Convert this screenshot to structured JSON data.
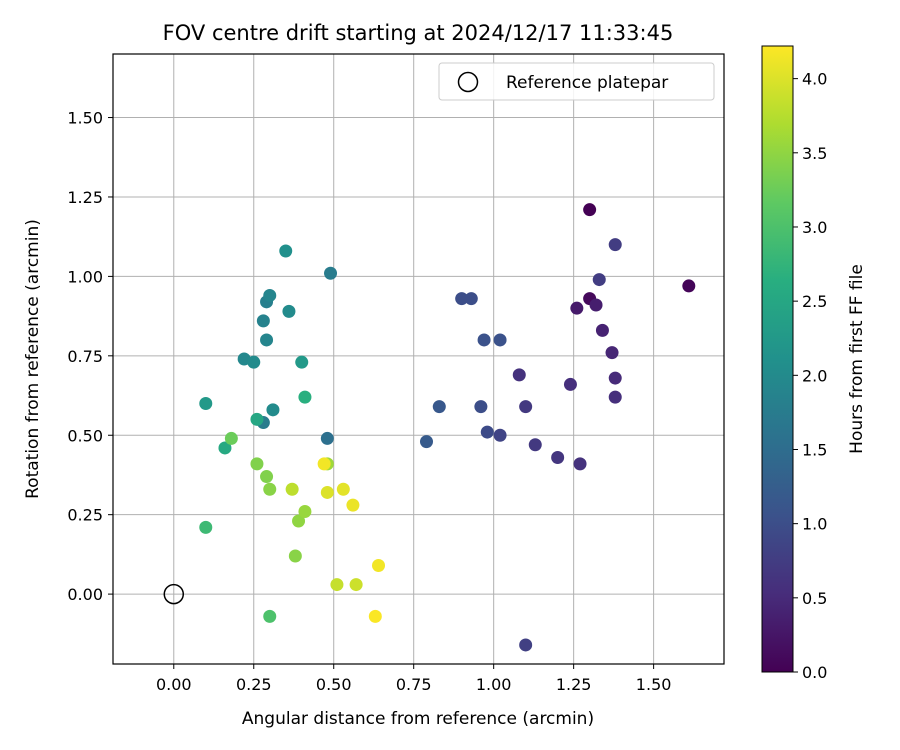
{
  "chart_data": {
    "type": "scatter",
    "title": "FOV centre drift starting at 2024/12/17 11:33:45",
    "xlabel": "Angular distance from reference (arcmin)",
    "ylabel": "Rotation from reference (arcmin)",
    "xlim": [
      -0.19,
      1.72
    ],
    "ylim": [
      -0.22,
      1.7
    ],
    "xticks": [
      0.0,
      0.25,
      0.5,
      0.75,
      1.0,
      1.25,
      1.5
    ],
    "xtick_labels": [
      "0.00",
      "0.25",
      "0.50",
      "0.75",
      "1.00",
      "1.25",
      "1.50"
    ],
    "yticks": [
      0.0,
      0.25,
      0.5,
      0.75,
      1.0,
      1.25,
      1.5
    ],
    "ytick_labels": [
      "0.00",
      "0.25",
      "0.50",
      "0.75",
      "1.00",
      "1.25",
      "1.50"
    ],
    "grid": true,
    "legend": {
      "position": "top-right",
      "entries": [
        "Reference platepar"
      ]
    },
    "reference_point": {
      "x": 0.0,
      "y": 0.0
    },
    "colorbar": {
      "label": "Hours from first FF file",
      "min": 0.0,
      "max": 4.22,
      "ticks": [
        0.0,
        0.5,
        1.0,
        1.5,
        2.0,
        2.5,
        3.0,
        3.5,
        4.0
      ],
      "tick_labels": [
        "0.0",
        "0.5",
        "1.0",
        "1.5",
        "2.0",
        "2.5",
        "3.0",
        "3.5",
        "4.0"
      ],
      "colormap": "viridis"
    },
    "series": [
      {
        "points": [
          {
            "x": 1.3,
            "y": 1.21,
            "c": 0.0
          },
          {
            "x": 1.61,
            "y": 0.97,
            "c": 0.05
          },
          {
            "x": 1.3,
            "y": 0.93,
            "c": 0.1
          },
          {
            "x": 1.26,
            "y": 0.9,
            "c": 0.3
          },
          {
            "x": 1.32,
            "y": 0.91,
            "c": 0.35
          },
          {
            "x": 1.34,
            "y": 0.83,
            "c": 0.4
          },
          {
            "x": 1.37,
            "y": 0.76,
            "c": 0.45
          },
          {
            "x": 1.38,
            "y": 0.68,
            "c": 0.5
          },
          {
            "x": 1.38,
            "y": 0.62,
            "c": 0.55
          },
          {
            "x": 1.24,
            "y": 0.66,
            "c": 0.55
          },
          {
            "x": 1.27,
            "y": 0.41,
            "c": 0.6
          },
          {
            "x": 1.2,
            "y": 0.43,
            "c": 0.65
          },
          {
            "x": 1.13,
            "y": 0.47,
            "c": 0.7
          },
          {
            "x": 1.08,
            "y": 0.69,
            "c": 0.6
          },
          {
            "x": 1.1,
            "y": 0.59,
            "c": 0.7
          },
          {
            "x": 1.33,
            "y": 0.99,
            "c": 0.75
          },
          {
            "x": 1.38,
            "y": 1.1,
            "c": 0.75
          },
          {
            "x": 1.1,
            "y": -0.16,
            "c": 0.8
          },
          {
            "x": 1.02,
            "y": 0.5,
            "c": 0.85
          },
          {
            "x": 0.98,
            "y": 0.51,
            "c": 0.95
          },
          {
            "x": 0.96,
            "y": 0.59,
            "c": 1.0
          },
          {
            "x": 0.97,
            "y": 0.8,
            "c": 1.05
          },
          {
            "x": 1.02,
            "y": 0.8,
            "c": 1.05
          },
          {
            "x": 0.9,
            "y": 0.93,
            "c": 1.0
          },
          {
            "x": 0.93,
            "y": 0.93,
            "c": 1.0
          },
          {
            "x": 0.83,
            "y": 0.59,
            "c": 1.15
          },
          {
            "x": 0.79,
            "y": 0.48,
            "c": 1.2
          },
          {
            "x": 0.48,
            "y": 0.49,
            "c": 1.55
          },
          {
            "x": 0.49,
            "y": 1.01,
            "c": 1.75
          },
          {
            "x": 0.29,
            "y": 0.92,
            "c": 1.8
          },
          {
            "x": 0.3,
            "y": 0.94,
            "c": 1.9
          },
          {
            "x": 0.28,
            "y": 0.86,
            "c": 1.85
          },
          {
            "x": 0.29,
            "y": 0.8,
            "c": 1.9
          },
          {
            "x": 0.36,
            "y": 0.89,
            "c": 2.0
          },
          {
            "x": 0.35,
            "y": 1.08,
            "c": 2.1
          },
          {
            "x": 0.22,
            "y": 0.74,
            "c": 1.95
          },
          {
            "x": 0.25,
            "y": 0.73,
            "c": 2.0
          },
          {
            "x": 0.28,
            "y": 0.54,
            "c": 1.75
          },
          {
            "x": 0.31,
            "y": 0.58,
            "c": 2.0
          },
          {
            "x": 0.4,
            "y": 0.73,
            "c": 2.25
          },
          {
            "x": 0.1,
            "y": 0.6,
            "c": 2.25
          },
          {
            "x": 0.26,
            "y": 0.55,
            "c": 2.5
          },
          {
            "x": 0.16,
            "y": 0.46,
            "c": 2.55
          },
          {
            "x": 0.41,
            "y": 0.62,
            "c": 2.65
          },
          {
            "x": 0.1,
            "y": 0.21,
            "c": 2.85
          },
          {
            "x": 0.3,
            "y": -0.07,
            "c": 3.0
          },
          {
            "x": 0.18,
            "y": 0.49,
            "c": 3.25
          },
          {
            "x": 0.26,
            "y": 0.41,
            "c": 3.4
          },
          {
            "x": 0.29,
            "y": 0.37,
            "c": 3.4
          },
          {
            "x": 0.3,
            "y": 0.33,
            "c": 3.45
          },
          {
            "x": 0.38,
            "y": 0.12,
            "c": 3.45
          },
          {
            "x": 0.39,
            "y": 0.23,
            "c": 3.5
          },
          {
            "x": 0.41,
            "y": 0.26,
            "c": 3.55
          },
          {
            "x": 0.48,
            "y": 0.41,
            "c": 3.6
          },
          {
            "x": 0.37,
            "y": 0.33,
            "c": 3.8
          },
          {
            "x": 0.51,
            "y": 0.03,
            "c": 3.85
          },
          {
            "x": 0.57,
            "y": 0.03,
            "c": 3.9
          },
          {
            "x": 0.48,
            "y": 0.32,
            "c": 4.0
          },
          {
            "x": 0.53,
            "y": 0.33,
            "c": 4.05
          },
          {
            "x": 0.56,
            "y": 0.28,
            "c": 4.1
          },
          {
            "x": 0.47,
            "y": 0.41,
            "c": 4.15
          },
          {
            "x": 0.64,
            "y": 0.09,
            "c": 4.15
          },
          {
            "x": 0.63,
            "y": -0.07,
            "c": 4.2
          }
        ]
      }
    ]
  }
}
